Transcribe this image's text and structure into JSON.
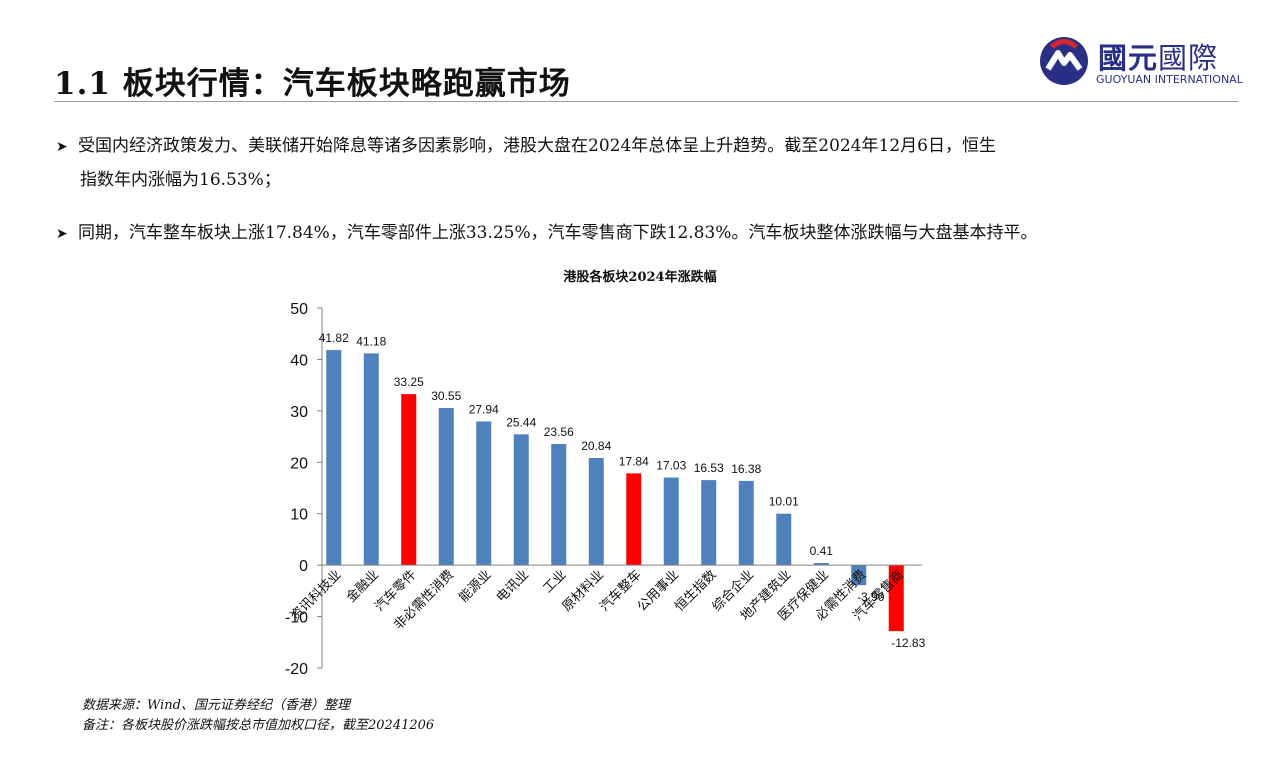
{
  "header": {
    "title": "1.1 板块行情：汽车板块略跑赢市场",
    "logo": {
      "name": "globe-logo-icon",
      "cn_bold": "國元",
      "cn_light": "國際",
      "en": "GUOYUAN INTERNATIONAL"
    }
  },
  "bullets": [
    {
      "line1": "受国内经济政策发力、美联储开始降息等诸多因素影响，港股大盘在2024年总体呈上升趋势。截至2024年12月6日，恒生",
      "line2": "指数年内涨幅为16.53%；"
    },
    {
      "line1": "同期，汽车整车板块上涨17.84%，汽车零部件上涨33.25%，汽车零售商下跌12.83%。汽车板块整体涨跌幅与大盘基本持平。"
    }
  ],
  "chart_data": {
    "type": "bar",
    "title": "港股各板块2024年涨跌幅",
    "categories": [
      "资讯科技业",
      "金融业",
      "汽车零件",
      "非必需性消费",
      "能源业",
      "电讯业",
      "工业",
      "原材料业",
      "汽车整车",
      "公用事业",
      "恒生指数",
      "综合企业",
      "地产建筑业",
      "医疗保健业",
      "必需性消费",
      "汽车零售商"
    ],
    "values": [
      41.82,
      41.18,
      33.25,
      30.55,
      27.94,
      25.44,
      23.56,
      20.84,
      17.84,
      17.03,
      16.53,
      16.38,
      10.01,
      0.41,
      -3.9,
      -12.83
    ],
    "value_labels": [
      "41.82",
      "41.18",
      "33.25",
      "30.55",
      "27.94",
      "25.44",
      "23.56",
      "20.84",
      "17.84",
      "17.03",
      "16.53",
      "16.38",
      "10.01",
      "0.41",
      "-3.90",
      "-12.83"
    ],
    "highlight": [
      false,
      false,
      true,
      false,
      false,
      false,
      false,
      false,
      true,
      false,
      false,
      false,
      false,
      false,
      false,
      true
    ],
    "colors": {
      "default": "#4f81bd",
      "highlight": "#ff0000"
    },
    "ylim": [
      -20,
      50
    ],
    "yticks": [
      "-20",
      "-10",
      "0",
      "10",
      "20",
      "30",
      "40",
      "50"
    ],
    "xlabel": "",
    "ylabel": "",
    "grid": false,
    "legend": "none"
  },
  "notes": {
    "source": "数据来源：Wind、国元证券经纪（香港）整理",
    "remark": "备注：各板块股价涨跌幅按总市值加权口径，截至20241206"
  }
}
